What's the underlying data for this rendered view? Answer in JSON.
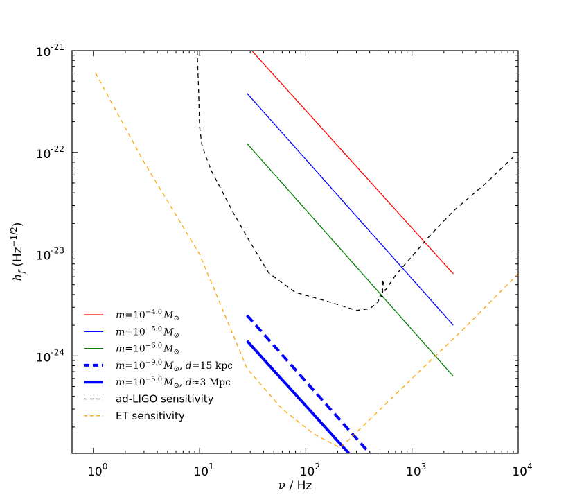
{
  "chart_data": {
    "type": "line",
    "xscale": "log",
    "yscale": "log",
    "xlim": [
      0.63,
      10000
    ],
    "ylim": [
      1.1e-25,
      1e-21
    ],
    "xticks": [
      {
        "value": 1,
        "base": "10",
        "exp": "0"
      },
      {
        "value": 10,
        "base": "10",
        "exp": "1"
      },
      {
        "value": 100,
        "base": "10",
        "exp": "2"
      },
      {
        "value": 1000,
        "base": "10",
        "exp": "3"
      },
      {
        "value": 10000,
        "base": "10",
        "exp": "4"
      }
    ],
    "yticks": [
      {
        "value": 1e-21,
        "base": "10",
        "exp": "-21"
      },
      {
        "value": 1e-22,
        "base": "10",
        "exp": "-22"
      },
      {
        "value": 1e-23,
        "base": "10",
        "exp": "-23"
      },
      {
        "value": 1e-24,
        "base": "10",
        "exp": "-24"
      }
    ],
    "xlabel": {
      "sym": "ν",
      "unit": " / Hz"
    },
    "ylabel": {
      "sym": "h",
      "sub": "f",
      "unit_pre": " (Hz",
      "unit_exp": "−1/2",
      "unit_post": ")"
    },
    "legend_position": "lower-left",
    "series": [
      {
        "id": "s1",
        "name_parts": [
          "m",
          "=10",
          "−4.0",
          "M",
          "⊙"
        ],
        "color": "#ff0000",
        "style": "solid",
        "width": 1.3,
        "x": [
          31,
          2450
        ],
        "y": [
          1e-21,
          6.4e-24
        ]
      },
      {
        "id": "s2",
        "name_parts": [
          "m",
          "=10",
          "−5.0",
          "M",
          "⊙"
        ],
        "color": "#0000ff",
        "style": "solid",
        "width": 1.3,
        "x": [
          28,
          2450
        ],
        "y": [
          3.8e-22,
          2e-24
        ]
      },
      {
        "id": "s3",
        "name_parts": [
          "m",
          "=10",
          "−6.0",
          "M",
          "⊙"
        ],
        "color": "#008000",
        "style": "solid",
        "width": 1.3,
        "x": [
          28,
          2450
        ],
        "y": [
          1.22e-22,
          6.3e-25
        ]
      },
      {
        "id": "s4",
        "name_parts": [
          "m",
          "=10",
          "−9.0",
          "M",
          "⊙",
          ", ",
          "d",
          "=15 kpc"
        ],
        "color": "#0000ff",
        "style": "dashed",
        "width": 4,
        "x": [
          28,
          400
        ],
        "y": [
          2.5e-24,
          1.1e-25
        ]
      },
      {
        "id": "s5",
        "name_parts": [
          "m",
          "=10",
          "−5.0",
          "M",
          "⊙",
          ", ",
          "d",
          "≈3 Mpc"
        ],
        "color": "#0000ff",
        "style": "solid",
        "width": 4,
        "x": [
          28,
          255
        ],
        "y": [
          1.4e-24,
          1.1e-25
        ]
      },
      {
        "id": "s6",
        "name": "ad-LIGO sensitivity",
        "color": "#000000",
        "style": "dashed",
        "width": 1.3,
        "x": [
          9.5,
          9.8,
          10,
          10.5,
          11.5,
          13,
          16,
          21,
          30,
          45,
          80,
          150,
          300,
          400,
          480,
          500,
          530,
          530,
          560,
          700,
          1000,
          1500,
          2500,
          5000,
          9000
        ],
        "y": [
          1e-21,
          4e-22,
          1.8e-22,
          1.2e-22,
          9e-23,
          6.5e-23,
          4.3e-23,
          2.5e-23,
          1.3e-23,
          6.5e-24,
          4.2e-24,
          3.5e-24,
          2.8e-24,
          2.9e-24,
          3.4e-24,
          3.9e-24,
          3.8e-24,
          5.6e-24,
          4.4e-24,
          6.2e-24,
          9.5e-24,
          1.55e-23,
          2.7e-23,
          5e-23,
          9e-23
        ]
      },
      {
        "id": "s7",
        "name": "ET sensitivity",
        "color": "#ffa500",
        "style": "dashed",
        "width": 1.3,
        "x": [
          1.05,
          3,
          10,
          28,
          60,
          120,
          210,
          255,
          1000,
          3000,
          10000
        ],
        "y": [
          6e-22,
          8e-23,
          1e-23,
          7.5e-25,
          3e-25,
          1.7e-25,
          1.25e-25,
          1.5e-25,
          6e-25,
          1.8e-24,
          6.4e-24
        ]
      }
    ]
  }
}
